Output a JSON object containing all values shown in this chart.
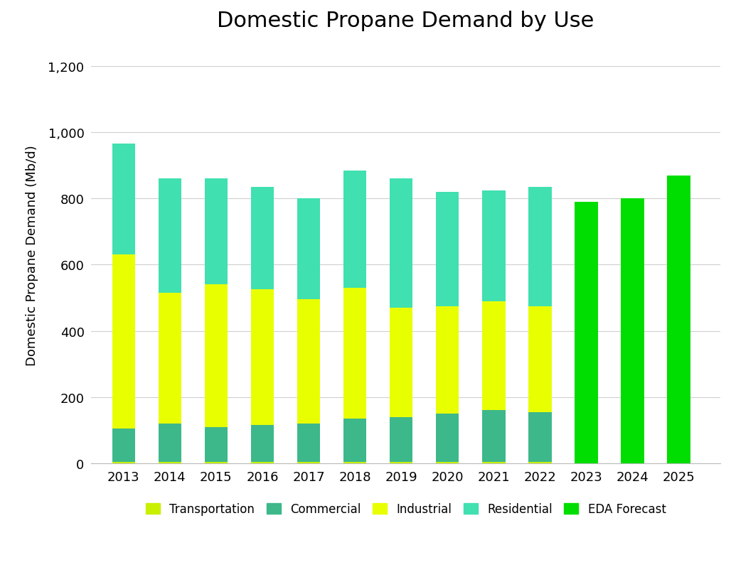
{
  "title": "Domestic Propane Demand by Use",
  "ylabel": "Domestic Propane Demand (Mb/d)",
  "years_historical": [
    2013,
    2014,
    2015,
    2016,
    2017,
    2018,
    2019,
    2020,
    2021,
    2022
  ],
  "years_forecast": [
    2023,
    2024,
    2025
  ],
  "transportation": [
    5,
    5,
    5,
    5,
    5,
    5,
    5,
    5,
    5,
    5
  ],
  "commercial": [
    100,
    115,
    105,
    110,
    115,
    130,
    135,
    145,
    155,
    150
  ],
  "industrial": [
    525,
    395,
    430,
    410,
    375,
    395,
    330,
    325,
    330,
    320
  ],
  "residential": [
    335,
    345,
    320,
    310,
    305,
    355,
    390,
    345,
    335,
    360
  ],
  "eda_forecast": [
    790,
    800,
    870
  ],
  "color_transportation": "#c8f000",
  "color_commercial": "#3db88a",
  "color_industrial": "#e8ff00",
  "color_residential": "#40e0b0",
  "color_eda_forecast": "#00dd00",
  "background_color": "#ffffff",
  "ylim": [
    0,
    1260
  ],
  "yticks": [
    0,
    200,
    400,
    600,
    800,
    1000,
    1200
  ],
  "ytick_labels": [
    "0",
    "200",
    "400",
    "600",
    "800",
    "1,000",
    "1,200"
  ],
  "bar_width": 0.5,
  "title_fontsize": 22,
  "label_fontsize": 13,
  "tick_fontsize": 13
}
